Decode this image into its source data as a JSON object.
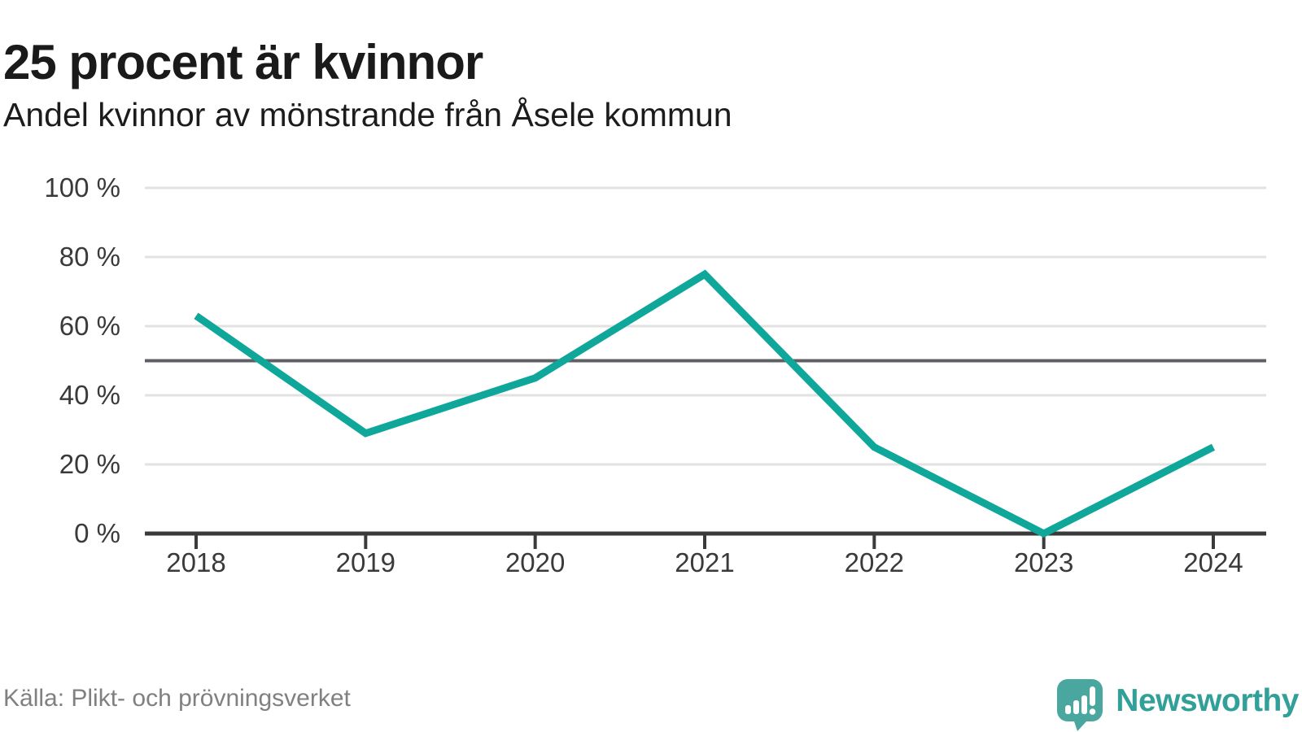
{
  "header": {
    "title": "25 procent är kvinnor",
    "subtitle": "Andel kvinnor av mönstrande från Åsele kommun"
  },
  "chart_data": {
    "type": "line",
    "title": "25 procent är kvinnor",
    "subtitle": "Andel kvinnor av mönstrande från Åsele kommun",
    "x": [
      "2018",
      "2019",
      "2020",
      "2021",
      "2022",
      "2023",
      "2024"
    ],
    "values": [
      63,
      29,
      45,
      75,
      25,
      0,
      25
    ],
    "unit": "%",
    "ylim": [
      0,
      100
    ],
    "yticks": [
      0,
      20,
      40,
      60,
      80,
      100
    ],
    "ytick_suffix": " %",
    "reference_line": 50,
    "grid": true,
    "legend": "none",
    "line_color": "#0fa79a",
    "grid_color": "#e2e2e2",
    "reference_line_color": "#5f6066",
    "axis_color": "#3a3a3a",
    "tick_label_color": "#3a3a3a"
  },
  "footer": {
    "source": "Källa: Plikt- och prövningsverket",
    "logo_text": "Newsworthy",
    "logo_icon_color": "#4aa7a0",
    "logo_text_color": "#31a099"
  }
}
